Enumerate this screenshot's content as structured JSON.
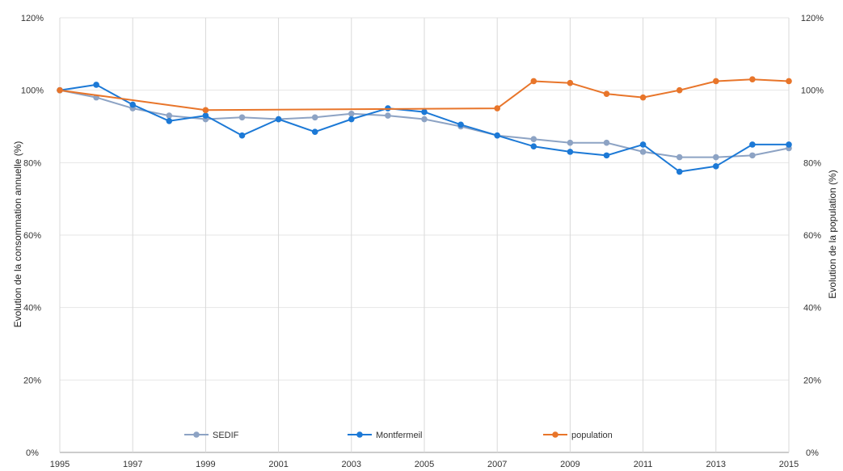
{
  "chart_data": {
    "type": "line",
    "title": "",
    "xlabel": "",
    "ylabel": "Evolution de la consommation annuelle (%)",
    "y2label": "Evolution de la population (%)",
    "ylim": [
      0,
      120
    ],
    "y2lim": [
      0,
      120
    ],
    "yticks": [
      "0%",
      "20%",
      "40%",
      "60%",
      "80%",
      "100%",
      "120%"
    ],
    "y2ticks": [
      "0%",
      "20%",
      "40%",
      "60%",
      "80%",
      "100%",
      "120%"
    ],
    "xticks": [
      "1995",
      "1997",
      "1999",
      "2001",
      "2003",
      "2005",
      "2007",
      "2009",
      "2011",
      "2013",
      "2015"
    ],
    "x": [
      1995,
      1996,
      1997,
      1998,
      1999,
      2000,
      2001,
      2002,
      2003,
      2004,
      2005,
      2006,
      2007,
      2008,
      2009,
      2010,
      2011,
      2012,
      2013,
      2014,
      2015
    ],
    "grid": "vertical lines at every second year",
    "legend_position": "bottom",
    "series": [
      {
        "name": "SEDIF",
        "color": "#8da3c4",
        "axis": "left",
        "values": [
          100,
          98,
          95,
          93,
          92,
          92.5,
          92,
          92.5,
          93.5,
          93,
          92,
          90,
          87.5,
          86.5,
          85.5,
          85.5,
          83,
          81.5,
          81.5,
          82,
          84
        ]
      },
      {
        "name": "Montfermeil",
        "color": "#1c79d6",
        "axis": "left",
        "values": [
          100,
          101.5,
          96,
          91.5,
          93,
          87.5,
          92,
          88.5,
          92,
          95,
          94,
          90.5,
          87.5,
          84.5,
          83,
          82,
          85,
          77.5,
          79,
          85,
          85
        ]
      },
      {
        "name": "population",
        "color": "#e8752a",
        "axis": "right",
        "x": [
          1995,
          1999,
          2007,
          2008,
          2009,
          2010,
          2011,
          2012,
          2013,
          2014,
          2015
        ],
        "values": [
          100,
          94.5,
          95,
          102.5,
          102,
          99,
          98,
          100,
          102.5,
          103,
          102.5
        ]
      }
    ]
  }
}
